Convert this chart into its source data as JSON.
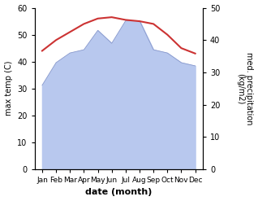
{
  "months": [
    "Jan",
    "Feb",
    "Mar",
    "Apr",
    "May",
    "Jun",
    "Jul",
    "Aug",
    "Sep",
    "Oct",
    "Nov",
    "Dec"
  ],
  "temperature": [
    44,
    48,
    51,
    54,
    56,
    56.5,
    55.5,
    55,
    54,
    50,
    45,
    43
  ],
  "precipitation_right": [
    26,
    33,
    36,
    37,
    43,
    39,
    46,
    46,
    37,
    36,
    33,
    32
  ],
  "temp_color": "#cc3333",
  "precip_fill_color": "#b8c8ee",
  "precip_line_color": "#8899cc",
  "ylabel_left": "max temp (C)",
  "ylabel_right": "med. precipitation\n(kg/m2)",
  "xlabel": "date (month)",
  "ylim_left": [
    0,
    60
  ],
  "ylim_right": [
    0,
    50
  ],
  "yticks_left": [
    0,
    10,
    20,
    30,
    40,
    50,
    60
  ],
  "yticks_right": [
    0,
    10,
    20,
    30,
    40,
    50
  ],
  "bg_color": "#ffffff"
}
